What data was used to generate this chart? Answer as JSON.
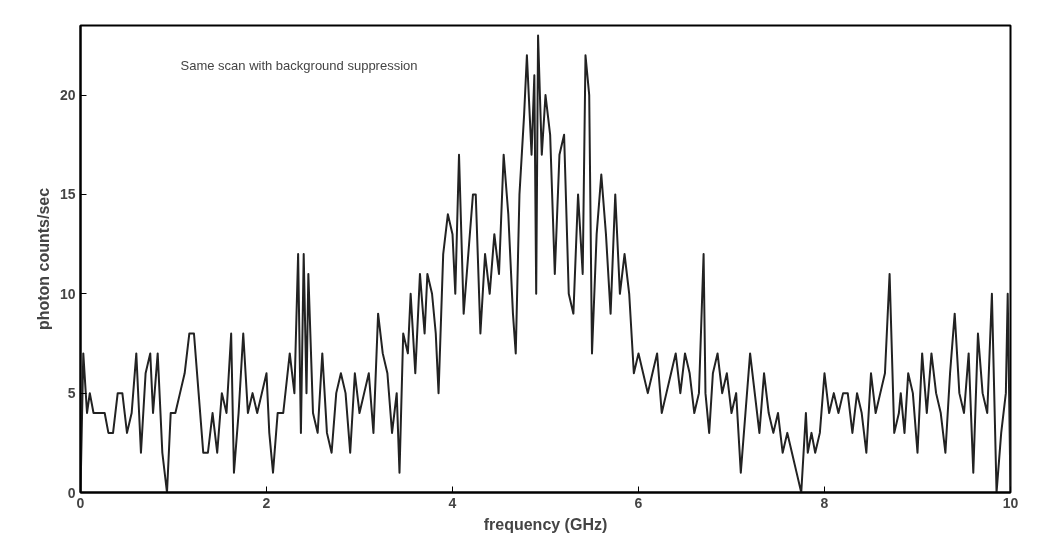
{
  "chart_data": {
    "type": "line",
    "xlabel": "frequency (GHz)",
    "ylabel": "photon counts/sec",
    "annotations": [
      "Same scan with background suppression"
    ],
    "xlim": [
      0,
      10
    ],
    "ylim": [
      0,
      23.5
    ],
    "xticks": [
      0,
      2,
      4,
      6,
      8,
      10
    ],
    "yticks": [
      0,
      5,
      10,
      15,
      20
    ],
    "grid": false,
    "marker": "none",
    "line_style": "solid",
    "series": [
      {
        "color": "#222222",
        "x": [
          0,
          0.03,
          0.07,
          0.1,
          0.14,
          0.2,
          0.26,
          0.3,
          0.35,
          0.4,
          0.45,
          0.5,
          0.55,
          0.6,
          0.65,
          0.7,
          0.75,
          0.78,
          0.83,
          0.88,
          0.93,
          0.97,
          1.02,
          1.07,
          1.12,
          1.17,
          1.22,
          1.27,
          1.32,
          1.37,
          1.42,
          1.47,
          1.52,
          1.57,
          1.62,
          1.65,
          1.7,
          1.75,
          1.8,
          1.85,
          1.9,
          1.95,
          2.0,
          2.03,
          2.07,
          2.12,
          2.18,
          2.25,
          2.3,
          2.34,
          2.37,
          2.4,
          2.43,
          2.45,
          2.5,
          2.55,
          2.6,
          2.65,
          2.7,
          2.75,
          2.8,
          2.85,
          2.9,
          2.95,
          3.0,
          3.05,
          3.1,
          3.15,
          3.2,
          3.25,
          3.3,
          3.35,
          3.4,
          3.43,
          3.47,
          3.52,
          3.55,
          3.6,
          3.65,
          3.7,
          3.73,
          3.78,
          3.82,
          3.85,
          3.9,
          3.95,
          4.0,
          4.03,
          4.07,
          4.12,
          4.17,
          4.22,
          4.25,
          4.3,
          4.35,
          4.4,
          4.45,
          4.5,
          4.55,
          4.6,
          4.65,
          4.68,
          4.72,
          4.77,
          4.8,
          4.85,
          4.88,
          4.9,
          4.92,
          4.96,
          5.0,
          5.05,
          5.1,
          5.15,
          5.2,
          5.25,
          5.3,
          5.35,
          5.4,
          5.43,
          5.47,
          5.5,
          5.55,
          5.6,
          5.65,
          5.7,
          5.75,
          5.8,
          5.85,
          5.9,
          5.95,
          6.0,
          6.05,
          6.1,
          6.15,
          6.2,
          6.25,
          6.3,
          6.35,
          6.4,
          6.45,
          6.5,
          6.55,
          6.6,
          6.65,
          6.7,
          6.72,
          6.76,
          6.8,
          6.85,
          6.9,
          6.95,
          7.0,
          7.05,
          7.1,
          7.15,
          7.2,
          7.25,
          7.3,
          7.35,
          7.4,
          7.45,
          7.5,
          7.55,
          7.6,
          7.65,
          7.7,
          7.75,
          7.8,
          7.82,
          7.86,
          7.9,
          7.95,
          8.0,
          8.05,
          8.1,
          8.15,
          8.2,
          8.25,
          8.3,
          8.35,
          8.4,
          8.45,
          8.5,
          8.55,
          8.6,
          8.65,
          8.7,
          8.75,
          8.8,
          8.82,
          8.86,
          8.9,
          8.95,
          9.0,
          9.05,
          9.1,
          9.15,
          9.2,
          9.25,
          9.3,
          9.35,
          9.4,
          9.45,
          9.5,
          9.55,
          9.6,
          9.65,
          9.7,
          9.75,
          9.8,
          9.85,
          9.9,
          9.95,
          9.97,
          10.0
        ],
        "values": [
          0,
          7,
          4,
          5,
          4,
          4,
          4,
          3,
          3,
          5,
          5,
          3,
          4,
          7,
          2,
          6,
          7,
          4,
          7,
          2,
          0,
          4,
          4,
          5,
          6,
          8,
          8,
          5,
          2,
          2,
          4,
          2,
          5,
          4,
          8,
          1,
          4,
          8,
          4,
          5,
          4,
          5,
          6,
          3,
          1,
          4,
          4,
          7,
          5,
          12,
          3,
          12,
          5,
          11,
          4,
          3,
          7,
          3,
          2,
          5,
          6,
          5,
          2,
          6,
          4,
          5,
          6,
          3,
          9,
          7,
          6,
          3,
          5,
          1,
          8,
          7,
          10,
          6,
          11,
          8,
          11,
          10,
          8,
          5,
          12,
          14,
          13,
          10,
          17,
          9,
          12,
          15,
          15,
          8,
          12,
          10,
          13,
          11,
          17,
          14,
          9,
          7,
          15,
          19,
          22,
          17,
          21,
          10,
          23,
          17,
          20,
          18,
          11,
          17,
          18,
          10,
          9,
          15,
          11,
          22,
          20,
          7,
          13,
          16,
          13,
          9,
          15,
          10,
          12,
          10,
          6,
          7,
          6,
          5,
          6,
          7,
          4,
          5,
          6,
          7,
          5,
          7,
          6,
          4,
          5,
          12,
          5,
          3,
          6,
          7,
          5,
          6,
          4,
          5,
          1,
          4,
          7,
          5,
          3,
          6,
          4,
          3,
          4,
          2,
          3,
          2,
          1,
          0,
          4,
          2,
          3,
          2,
          3,
          6,
          4,
          5,
          4,
          5,
          5,
          3,
          5,
          4,
          2,
          6,
          4,
          5,
          6,
          11,
          3,
          4,
          5,
          3,
          6,
          5,
          2,
          7,
          4,
          7,
          5,
          4,
          2,
          6,
          9,
          5,
          4,
          7,
          1,
          8,
          5,
          4,
          10,
          0,
          3,
          5,
          10,
          0
        ]
      }
    ]
  }
}
